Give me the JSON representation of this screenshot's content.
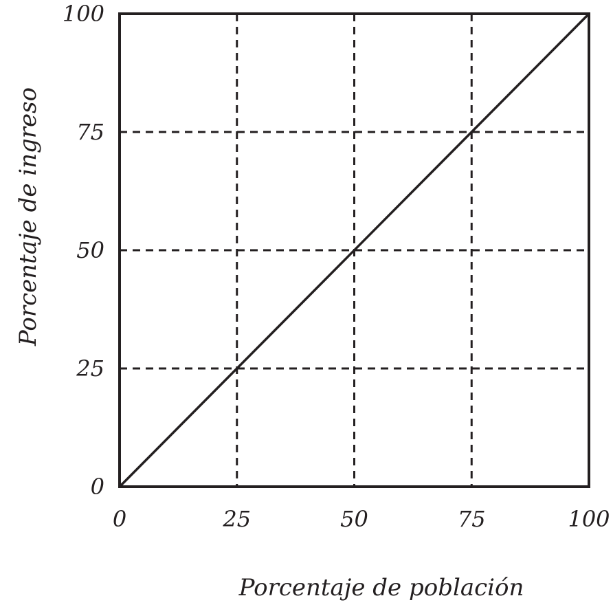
{
  "chart_data": {
    "type": "line",
    "title": "",
    "xlabel": "Porcentaje de población",
    "ylabel": "Porcentaje de ingreso",
    "xlim": [
      0,
      100
    ],
    "ylim": [
      0,
      100
    ],
    "x_ticks": [
      0,
      25,
      50,
      75,
      100
    ],
    "y_ticks": [
      0,
      25,
      50,
      75,
      100
    ],
    "x_tick_labels": [
      "0",
      "25",
      "50",
      "75",
      "100"
    ],
    "y_tick_labels": [
      "0",
      "25",
      "50",
      "75",
      "100"
    ],
    "grid": true,
    "grid_style": "dashed",
    "series": [
      {
        "x": [
          0,
          100
        ],
        "y": [
          0,
          100
        ],
        "color": "#231f20",
        "style": "solid"
      }
    ]
  },
  "colors": {
    "ink": "#231f20",
    "background": "#ffffff"
  }
}
